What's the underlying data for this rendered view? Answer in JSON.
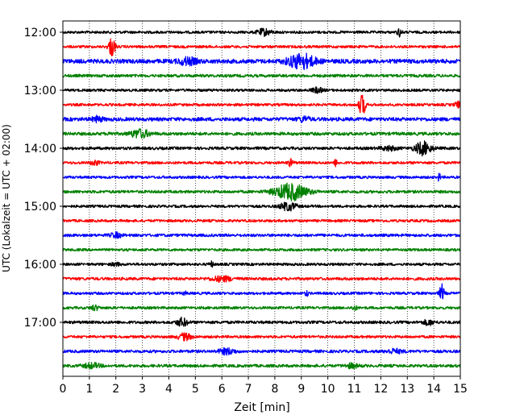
{
  "chart_data": {
    "type": "line",
    "title": "",
    "xlabel": "Zeit  [min]",
    "ylabel": "UTC (Lokalzeit = UTC + 02:00)",
    "xlim": [
      0,
      15
    ],
    "xticks": [
      0,
      1,
      2,
      3,
      4,
      5,
      6,
      7,
      8,
      9,
      10,
      11,
      12,
      13,
      14,
      15
    ],
    "y_tick_labels": [
      "12:00",
      "13:00",
      "14:00",
      "15:00",
      "16:00",
      "17:00"
    ],
    "grid": "vertical dotted at each minute",
    "trace_interval_minutes": 15,
    "start_time": "12:00",
    "color_cycle": [
      "#000000",
      "#ff0000",
      "#0000ff",
      "#008000"
    ],
    "traces": [
      {
        "time": "12:00",
        "color": "#000000",
        "noise": 1.0,
        "events": [
          {
            "t": 7.6,
            "amp": 4,
            "dur": 0.25
          },
          {
            "t": 12.7,
            "amp": 5,
            "dur": 0.08
          }
        ]
      },
      {
        "time": "12:15",
        "color": "#ff0000",
        "noise": 1.0,
        "events": [
          {
            "t": 1.85,
            "amp": 12,
            "dur": 0.12
          }
        ]
      },
      {
        "time": "12:30",
        "color": "#0000ff",
        "noise": 1.6,
        "events": [
          {
            "t": 4.7,
            "amp": 4,
            "dur": 0.35
          },
          {
            "t": 9.0,
            "amp": 9,
            "dur": 0.5
          }
        ]
      },
      {
        "time": "12:45",
        "color": "#008000",
        "noise": 1.1,
        "events": []
      },
      {
        "time": "13:00",
        "color": "#000000",
        "noise": 1.0,
        "events": [
          {
            "t": 9.6,
            "amp": 3,
            "dur": 0.2
          }
        ]
      },
      {
        "time": "13:15",
        "color": "#ff0000",
        "noise": 1.0,
        "events": [
          {
            "t": 11.3,
            "amp": 13,
            "dur": 0.12
          },
          {
            "t": 14.9,
            "amp": 4,
            "dur": 0.1
          }
        ]
      },
      {
        "time": "13:30",
        "color": "#0000ff",
        "noise": 1.4,
        "events": [
          {
            "t": 1.3,
            "amp": 3,
            "dur": 0.2
          },
          {
            "t": 9.1,
            "amp": 3,
            "dur": 0.2
          }
        ]
      },
      {
        "time": "13:45",
        "color": "#008000",
        "noise": 1.2,
        "events": [
          {
            "t": 2.9,
            "amp": 5,
            "dur": 0.35
          },
          {
            "t": 1.8,
            "amp": 4,
            "dur": 0.05
          }
        ]
      },
      {
        "time": "14:00",
        "color": "#000000",
        "noise": 1.1,
        "events": [
          {
            "t": 13.6,
            "amp": 8,
            "dur": 0.3
          },
          {
            "t": 12.3,
            "amp": 2.5,
            "dur": 0.3
          }
        ]
      },
      {
        "time": "14:15",
        "color": "#ff0000",
        "noise": 1.0,
        "events": [
          {
            "t": 8.6,
            "amp": 4,
            "dur": 0.1
          },
          {
            "t": 10.3,
            "amp": 4,
            "dur": 0.06
          },
          {
            "t": 1.2,
            "amp": 3,
            "dur": 0.15
          }
        ]
      },
      {
        "time": "14:30",
        "color": "#0000ff",
        "noise": 1.0,
        "events": [
          {
            "t": 14.2,
            "amp": 5,
            "dur": 0.05
          }
        ]
      },
      {
        "time": "14:45",
        "color": "#008000",
        "noise": 1.1,
        "events": [
          {
            "t": 8.6,
            "amp": 10,
            "dur": 0.6
          }
        ]
      },
      {
        "time": "15:00",
        "color": "#000000",
        "noise": 1.0,
        "events": [
          {
            "t": 8.5,
            "amp": 5,
            "dur": 0.3
          }
        ]
      },
      {
        "time": "15:15",
        "color": "#ff0000",
        "noise": 1.0,
        "events": []
      },
      {
        "time": "15:30",
        "color": "#0000ff",
        "noise": 1.1,
        "events": [
          {
            "t": 2.0,
            "amp": 3,
            "dur": 0.2
          }
        ]
      },
      {
        "time": "15:45",
        "color": "#008000",
        "noise": 1.0,
        "events": []
      },
      {
        "time": "16:00",
        "color": "#000000",
        "noise": 1.0,
        "events": [
          {
            "t": 5.6,
            "amp": 3,
            "dur": 0.08
          },
          {
            "t": 2.0,
            "amp": 2,
            "dur": 0.15
          }
        ]
      },
      {
        "time": "16:15",
        "color": "#ff0000",
        "noise": 1.1,
        "events": [
          {
            "t": 6.0,
            "amp": 3,
            "dur": 0.4
          }
        ]
      },
      {
        "time": "16:30",
        "color": "#0000ff",
        "noise": 1.0,
        "events": [
          {
            "t": 14.3,
            "amp": 11,
            "dur": 0.08
          },
          {
            "t": 9.2,
            "amp": 4,
            "dur": 0.05
          },
          {
            "t": 4.6,
            "amp": 2,
            "dur": 0.06
          }
        ]
      },
      {
        "time": "16:45",
        "color": "#008000",
        "noise": 1.0,
        "events": [
          {
            "t": 1.2,
            "amp": 3,
            "dur": 0.15
          },
          {
            "t": 11.0,
            "amp": 2.5,
            "dur": 0.1
          }
        ]
      },
      {
        "time": "17:00",
        "color": "#000000",
        "noise": 1.1,
        "events": [
          {
            "t": 4.5,
            "amp": 5,
            "dur": 0.2
          },
          {
            "t": 13.8,
            "amp": 3,
            "dur": 0.2
          }
        ]
      },
      {
        "time": "17:15",
        "color": "#ff0000",
        "noise": 1.0,
        "events": [
          {
            "t": 4.6,
            "amp": 4,
            "dur": 0.25
          }
        ]
      },
      {
        "time": "17:30",
        "color": "#0000ff",
        "noise": 1.1,
        "events": [
          {
            "t": 6.2,
            "amp": 3.5,
            "dur": 0.3
          },
          {
            "t": 12.5,
            "amp": 2.5,
            "dur": 0.3
          }
        ]
      },
      {
        "time": "17:45",
        "color": "#008000",
        "noise": 1.1,
        "events": [
          {
            "t": 1.1,
            "amp": 3,
            "dur": 0.3
          },
          {
            "t": 10.9,
            "amp": 2.5,
            "dur": 0.25
          }
        ]
      }
    ]
  }
}
